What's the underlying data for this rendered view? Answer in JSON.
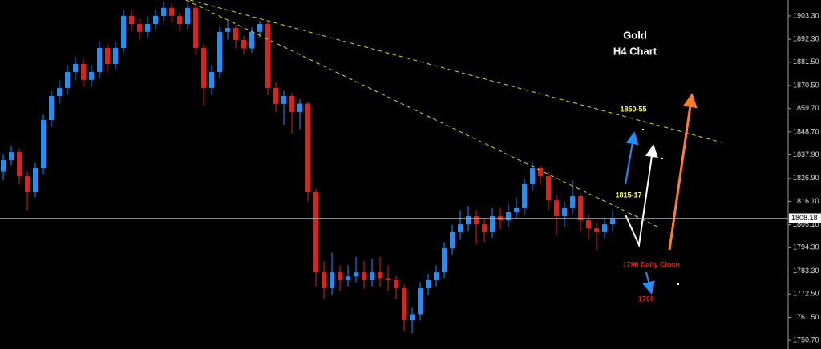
{
  "chart_data": {
    "type": "candlestick",
    "title": "Gold",
    "subtitle": "H4 Chart",
    "annotations": [
      "1850-55",
      "1815-17",
      "1790 Daily Close",
      "1760"
    ],
    "open": [
      1830.0,
      1835.5,
      1839.2,
      1827.9,
      1820.4,
      1831.7,
      1854.3,
      1865.6,
      1869.4,
      1876.9,
      1880.7,
      1873.2,
      1876.9,
      1888.2,
      1880.7,
      1888.2,
      1903.3,
      1899.5,
      1895.8,
      1899.5,
      1903.3,
      1907.1,
      1903.3,
      1899.5,
      1907.1,
      1888.2,
      1869.4,
      1876.9,
      1895.8,
      1897.6,
      1892.0,
      1888.0,
      1895.8,
      1899.5,
      1869.4,
      1861.9,
      1865.6,
      1858.1,
      1862.0,
      1820.4,
      1782.7,
      1775.2,
      1782.7,
      1779.0,
      1780.8,
      1782.7,
      1779.0,
      1782.7,
      1780.0,
      1779.0,
      1775.2,
      1760.1,
      1763.0,
      1775.2,
      1779.0,
      1782.7,
      1794.0,
      1801.6,
      1805.3,
      1809.1,
      1805.3,
      1801.6,
      1809.1,
      1807.2,
      1811.0,
      1812.9,
      1824.2,
      1831.7,
      1827.9,
      1816.6,
      1809.1,
      1812.9,
      1818.5,
      1807.2,
      1803.4,
      1801.6,
      1805.3
    ],
    "high": [
      1838.0,
      1842.0,
      1841.0,
      1830.0,
      1834.0,
      1857.0,
      1868.0,
      1873.0,
      1880.0,
      1884.0,
      1883.0,
      1880.0,
      1891.0,
      1890.0,
      1891.0,
      1906.0,
      1906.0,
      1902.0,
      1903.0,
      1906.0,
      1910.0,
      1909.0,
      1905.0,
      1909.5,
      1909.0,
      1890.0,
      1880.0,
      1898.0,
      1901.0,
      1899.0,
      1894.0,
      1898.0,
      1901.0,
      1900.5,
      1872.0,
      1868.0,
      1867.0,
      1864.0,
      1863.0,
      1822.0,
      1788.0,
      1792.0,
      1786.0,
      1786.0,
      1790.0,
      1788.0,
      1789.0,
      1790.0,
      1786.0,
      1781.0,
      1777.0,
      1766.0,
      1778.0,
      1782.0,
      1786.0,
      1797.0,
      1805.0,
      1812.0,
      1814.0,
      1812.0,
      1808.0,
      1813.0,
      1813.0,
      1815.0,
      1818.0,
      1827.0,
      1834.5,
      1833.0,
      1830.0,
      1819.0,
      1816.0,
      1826.0,
      1820.0,
      1810.0,
      1806.0,
      1808.0,
      1812.0
    ],
    "low": [
      1826.0,
      1833.0,
      1824.0,
      1812.0,
      1818.0,
      1829.0,
      1851.0,
      1862.0,
      1866.0,
      1873.0,
      1870.0,
      1870.0,
      1874.0,
      1877.0,
      1878.0,
      1886.0,
      1896.0,
      1892.0,
      1893.0,
      1897.0,
      1901.0,
      1900.0,
      1896.0,
      1897.0,
      1885.0,
      1861.0,
      1866.0,
      1874.0,
      1892.0,
      1888.0,
      1885.0,
      1886.0,
      1893.0,
      1866.0,
      1858.0,
      1852.0,
      1848.0,
      1850.0,
      1816.0,
      1776.0,
      1770.0,
      1772.0,
      1774.0,
      1776.0,
      1778.0,
      1775.0,
      1776.0,
      1776.0,
      1774.0,
      1770.0,
      1755.0,
      1754.0,
      1760.0,
      1772.0,
      1776.0,
      1780.0,
      1791.0,
      1798.0,
      1802.0,
      1796.0,
      1797.0,
      1799.0,
      1803.0,
      1804.0,
      1808.0,
      1810.0,
      1821.0,
      1824.0,
      1812.0,
      1800.0,
      1804.0,
      1810.0,
      1802.0,
      1798.0,
      1793.0,
      1799.0,
      1802.0
    ],
    "close": [
      1835.5,
      1839.2,
      1827.9,
      1820.4,
      1831.7,
      1854.3,
      1865.6,
      1869.4,
      1876.9,
      1880.7,
      1873.2,
      1876.9,
      1888.2,
      1880.7,
      1888.2,
      1903.3,
      1899.5,
      1895.8,
      1899.5,
      1903.3,
      1907.1,
      1903.3,
      1899.5,
      1907.1,
      1888.2,
      1869.4,
      1876.9,
      1895.8,
      1897.6,
      1892.0,
      1888.0,
      1895.8,
      1899.5,
      1869.4,
      1861.9,
      1865.6,
      1858.1,
      1862.0,
      1820.4,
      1782.7,
      1775.2,
      1782.7,
      1779.0,
      1780.8,
      1782.7,
      1779.0,
      1782.7,
      1780.0,
      1779.0,
      1775.2,
      1760.1,
      1763.0,
      1775.2,
      1779.0,
      1782.7,
      1794.0,
      1801.6,
      1805.3,
      1809.1,
      1805.3,
      1801.6,
      1809.1,
      1807.2,
      1811.0,
      1812.9,
      1824.2,
      1831.7,
      1827.9,
      1816.6,
      1809.1,
      1812.9,
      1818.5,
      1807.2,
      1803.4,
      1801.6,
      1805.3,
      1808.18
    ],
    "up_color": "#1e90ff",
    "down_color": "#e0201b",
    "ylim": [
      1746.6,
      1910.8
    ],
    "yticks": [
      {
        "value": 1903.3,
        "label": "1903.30"
      },
      {
        "value": 1892.3,
        "label": "1892.30"
      },
      {
        "value": 1881.5,
        "label": "1881.50"
      },
      {
        "value": 1870.5,
        "label": "1870.50"
      },
      {
        "value": 1859.7,
        "label": "1859.70"
      },
      {
        "value": 1848.7,
        "label": "1848.70"
      },
      {
        "value": 1837.9,
        "label": "1837.90"
      },
      {
        "value": 1826.9,
        "label": "1826.90"
      },
      {
        "value": 1816.1,
        "label": "1816.10"
      },
      {
        "value": 1805.1,
        "label": "1805.10"
      },
      {
        "value": 1794.3,
        "label": "1794.30"
      },
      {
        "value": 1783.3,
        "label": "1783.30"
      },
      {
        "value": 1772.5,
        "label": "1772.50"
      },
      {
        "value": 1761.5,
        "label": "1761.50"
      },
      {
        "value": 1750.7,
        "label": "1750.70"
      }
    ]
  }
}
